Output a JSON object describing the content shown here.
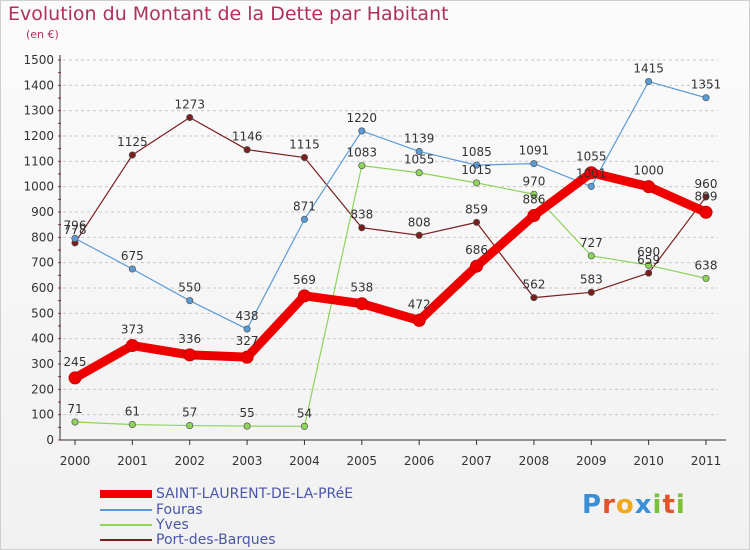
{
  "chart": {
    "title": "Evolution du Montant de la Dette par Habitant",
    "subtitle": "(en €)"
  },
  "logo": {
    "text": "Proxiti",
    "letters": [
      "P",
      "r",
      "o",
      "x",
      "i",
      "t",
      "i"
    ],
    "letter_colors": [
      "#3b8fd6",
      "#e2542a",
      "#f0a81e",
      "#3b8fd6",
      "#7bbf3a",
      "#e2542a",
      "#7bbf3a"
    ]
  },
  "chart_data": {
    "type": "line",
    "title": "Evolution du Montant de la Dette par Habitant",
    "subtitle": "(en €)",
    "xlabel": "",
    "ylabel": "",
    "x": [
      "2000",
      "2001",
      "2002",
      "2003",
      "2004",
      "2005",
      "2006",
      "2007",
      "2008",
      "2009",
      "2010",
      "2011"
    ],
    "ylim": [
      0,
      1500
    ],
    "yticks": [
      0,
      100,
      200,
      300,
      400,
      500,
      600,
      700,
      800,
      900,
      1000,
      1100,
      1200,
      1300,
      1400,
      1500
    ],
    "grid": "dashed-horizontal",
    "legend_position": "bottom-left",
    "series": [
      {
        "name": "Port-des-Barques",
        "color": "#7a1e1e",
        "values": [
          778,
          1125,
          1273,
          1146,
          1115,
          838,
          808,
          859,
          562,
          583,
          659,
          960
        ]
      },
      {
        "name": "Yves",
        "color": "#8fd45a",
        "values": [
          71,
          61,
          57,
          55,
          54,
          1083,
          1055,
          1015,
          970,
          727,
          690,
          638
        ]
      },
      {
        "name": "Fouras",
        "color": "#5b9bd5",
        "values": [
          796,
          675,
          550,
          438,
          871,
          1220,
          1139,
          1085,
          1091,
          1001,
          1415,
          1351
        ]
      },
      {
        "name": "SAINT-LAURENT-DE-LA-PRéE",
        "color": "#ee0000",
        "emphasis": true,
        "values": [
          245,
          373,
          336,
          327,
          569,
          538,
          472,
          686,
          886,
          1055,
          1000,
          899
        ]
      }
    ],
    "legend_order": [
      "SAINT-LAURENT-DE-LA-PRéE",
      "Fouras",
      "Yves",
      "Port-des-Barques"
    ]
  }
}
